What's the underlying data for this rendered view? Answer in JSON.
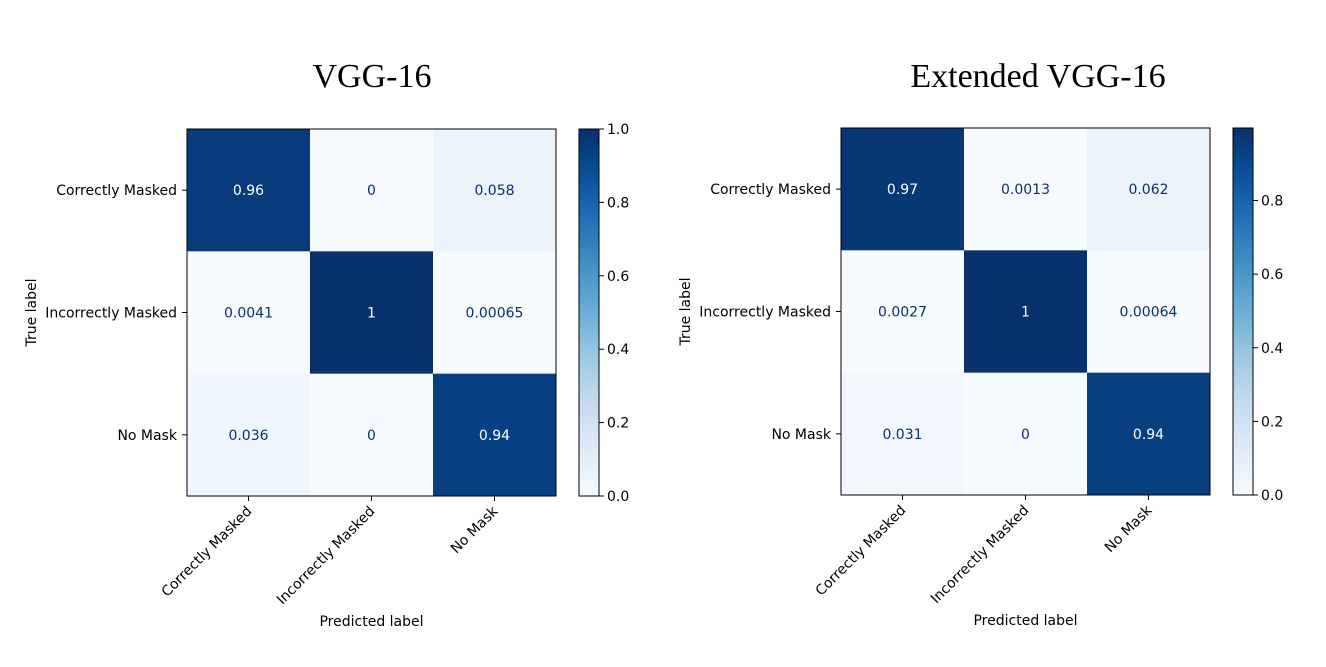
{
  "chart_data": [
    {
      "type": "heatmap",
      "title": "VGG-16",
      "xlabel": "Predicted label",
      "ylabel": "True label",
      "x_categories": [
        "Correctly Masked",
        "Incorrectly Masked",
        "No Mask"
      ],
      "y_categories": [
        "Correctly Masked",
        "Incorrectly Masked",
        "No Mask"
      ],
      "values": [
        [
          0.96,
          0,
          0.058
        ],
        [
          0.0041,
          1,
          0.00065
        ],
        [
          0.036,
          0,
          0.94
        ]
      ],
      "labels": [
        [
          "0.96",
          "0",
          "0.058"
        ],
        [
          "0.0041",
          "1",
          "0.00065"
        ],
        [
          "0.036",
          "0",
          "0.94"
        ]
      ],
      "colorscale": "Blues",
      "color_range": [
        0,
        1
      ],
      "colorbar_ticks": [
        0.0,
        0.2,
        0.4,
        0.6,
        0.8,
        1.0
      ],
      "colorbar_tick_labels": [
        "0.0",
        "0.2",
        "0.4",
        "0.6",
        "0.8",
        "1.0"
      ]
    },
    {
      "type": "heatmap",
      "title": "Extended VGG-16",
      "xlabel": "Predicted label",
      "ylabel": "True label",
      "x_categories": [
        "Correctly Masked",
        "Incorrectly Masked",
        "No Mask"
      ],
      "y_categories": [
        "Correctly Masked",
        "Incorrectly Masked",
        "No Mask"
      ],
      "values": [
        [
          0.97,
          0.0013,
          0.062
        ],
        [
          0.0027,
          1,
          0.00064
        ],
        [
          0.031,
          0,
          0.94
        ]
      ],
      "labels": [
        [
          "0.97",
          "0.0013",
          "0.062"
        ],
        [
          "0.0027",
          "1",
          "0.00064"
        ],
        [
          "0.031",
          "0",
          "0.94"
        ]
      ],
      "colorscale": "Blues",
      "color_range": [
        0,
        0.997
      ],
      "colorbar_ticks": [
        0.0,
        0.2,
        0.4,
        0.6,
        0.8
      ],
      "colorbar_tick_labels": [
        "0.0",
        "0.2",
        "0.4",
        "0.6",
        "0.8"
      ]
    }
  ]
}
